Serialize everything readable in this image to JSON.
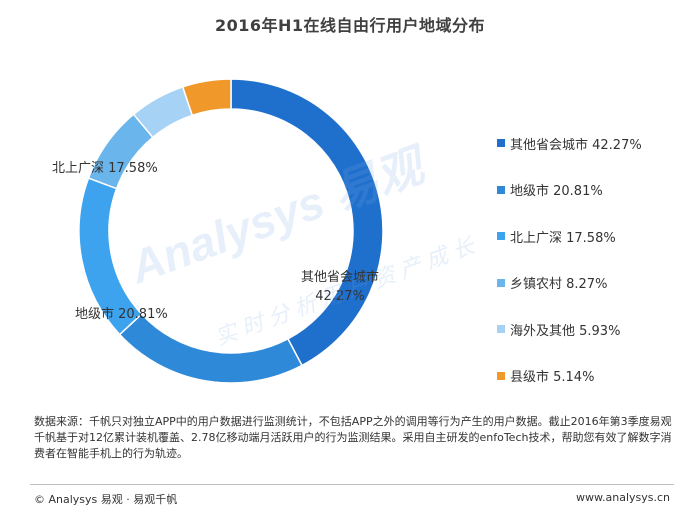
{
  "chart_data": {
    "type": "pie",
    "title": "2016年H1在线自由行用户地域分布",
    "categories": [
      "其他省会城市",
      "地级市",
      "北上广深",
      "乡镇农村",
      "海外及其他",
      "县级市"
    ],
    "values": [
      42.27,
      20.81,
      17.58,
      8.27,
      5.93,
      5.14
    ],
    "unit": "%",
    "colors": [
      "#1f6fcc",
      "#2e8ad8",
      "#3da3ee",
      "#6ab5ec",
      "#a6d2f5",
      "#f0992a"
    ],
    "donut": true,
    "legend_position": "right",
    "legend_labels": [
      "其他省会城市 42.27%",
      "地级市 20.81%",
      "北上广深 17.58%",
      "乡镇农村 8.27%",
      "海外及其他 5.93%",
      "县级市 5.14%"
    ],
    "data_labels": [
      {
        "name": "其他省会城市",
        "value": "42.27%"
      },
      {
        "name": "地级市",
        "value": "地级市 20.81%"
      },
      {
        "name": "北上广深",
        "value": "北上广深 17.58%"
      }
    ]
  },
  "watermark": {
    "brand": "Analysys 易观",
    "tagline": "实时分析用户资产成长"
  },
  "source_note": "数据来源：千帆只对独立APP中的用户数据进行监测统计，不包括APP之外的调用等行为产生的用户数据。截止2016年第3季度易观千帆基于对12亿累计装机覆盖、2.78亿移动端月活跃用户的行为监测结果。采用自主研发的enfoTech技术，帮助您有效了解数字消费者在智能手机上的行为轨迹。",
  "footer": {
    "left": "© Analysys 易观 · 易观千帆",
    "right": "www.analysys.cn"
  }
}
